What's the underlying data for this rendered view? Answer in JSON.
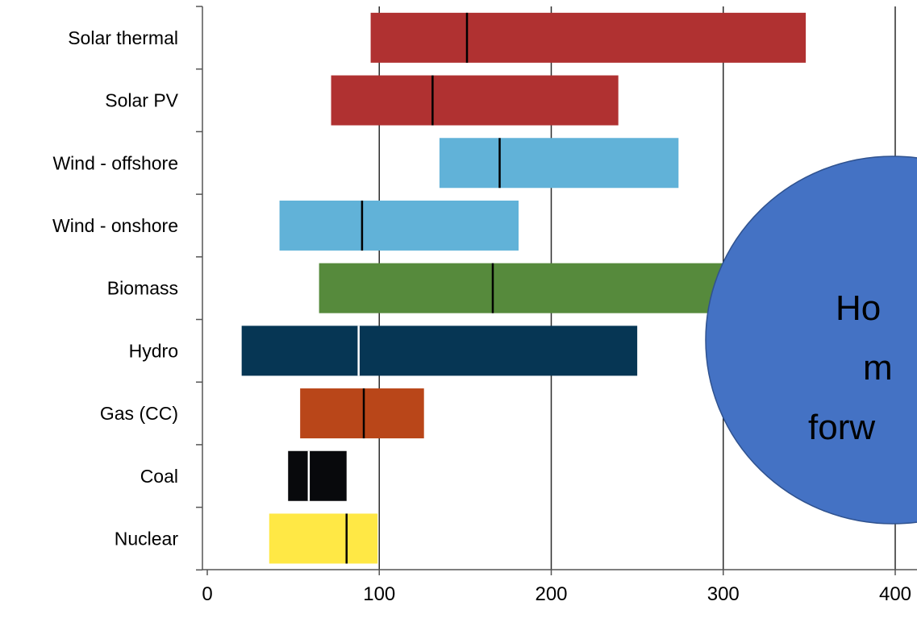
{
  "chart_data": {
    "type": "bar",
    "orientation": "horizontal",
    "subtype": "range-with-marker",
    "title": "",
    "xlabel": "",
    "ylabel": "",
    "xlim": [
      0,
      400
    ],
    "xticks": [
      0,
      100,
      200,
      300,
      400
    ],
    "grid": "vertical",
    "legend": "none",
    "categories": [
      "Solar thermal",
      "Solar PV",
      "Wind - offshore",
      "Wind - onshore",
      "Biomass",
      "Hydro",
      "Gas (CC)",
      "Coal",
      "Nuclear"
    ],
    "series": [
      {
        "ranges": [
          {
            "low": 95,
            "high": 348,
            "mid": 151,
            "color": "#b03131",
            "marker_color": "#000000"
          },
          {
            "low": 72,
            "high": 239,
            "mid": 131,
            "color": "#b03131",
            "marker_color": "#000000"
          },
          {
            "low": 135,
            "high": 274,
            "mid": 170,
            "color": "#61b2d8",
            "marker_color": "#000000"
          },
          {
            "low": 42,
            "high": 181,
            "mid": 90,
            "color": "#61b2d8",
            "marker_color": "#000000"
          },
          {
            "low": 65,
            "high": 315,
            "mid": 166,
            "color": "#568a3c",
            "marker_color": "#000000"
          },
          {
            "low": 20,
            "high": 250,
            "mid": 88,
            "color": "#063654",
            "marker_color": "#ffffff"
          },
          {
            "low": 54,
            "high": 126,
            "mid": 91,
            "color": "#b94619",
            "marker_color": "#000000"
          },
          {
            "low": 47,
            "high": 81,
            "mid": 59,
            "color": "#08090c",
            "marker_color": "#ffffff"
          },
          {
            "low": 36,
            "high": 99,
            "mid": 81,
            "color": "#ffe845",
            "marker_color": "#000000"
          }
        ]
      }
    ]
  },
  "callout": {
    "color": "#4472c4",
    "border_color": "#2f528f",
    "lines": [
      "Ho",
      "m",
      "forw"
    ]
  }
}
